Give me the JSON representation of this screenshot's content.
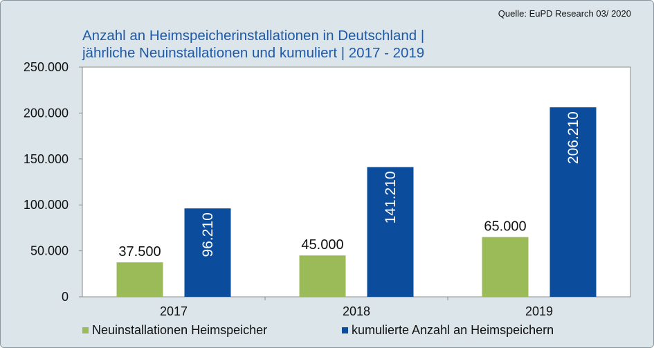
{
  "source": "Quelle: EuPD Research 03/ 2020",
  "title_lines": [
    "Anzahl an Heimspeicherinstallationen in Deutschland |",
    "jährliche Neuinstallationen und kumuliert | 2017 - 2019"
  ],
  "legend": {
    "items": [
      {
        "label": "Neuinstallationen Heimspeicher",
        "color": "#9bbb59"
      },
      {
        "label": "kumulierte Anzahl an Heimspeichern",
        "color": "#0b4c9c"
      }
    ]
  },
  "chart_data": {
    "type": "bar",
    "categories": [
      "2017",
      "2018",
      "2019"
    ],
    "series": [
      {
        "name": "Neuinstallationen Heimspeicher",
        "values": [
          37500,
          45000,
          65000
        ],
        "labels": [
          "37.500",
          "45.000",
          "65.000"
        ],
        "color": "#9bbb59"
      },
      {
        "name": "kumulierte Anzahl an Heimspeichern",
        "values": [
          96210,
          141210,
          206210
        ],
        "labels": [
          "96.210",
          "141.210",
          "206.210"
        ],
        "color": "#0b4c9c"
      }
    ],
    "ylim": [
      0,
      250000
    ],
    "yticks": [
      0,
      50000,
      100000,
      150000,
      200000,
      250000
    ],
    "ytick_labels": [
      "0",
      "50.000",
      "100.000",
      "150.000",
      "200.000",
      "250.000"
    ],
    "grid": false,
    "legend_position": "bottom"
  }
}
